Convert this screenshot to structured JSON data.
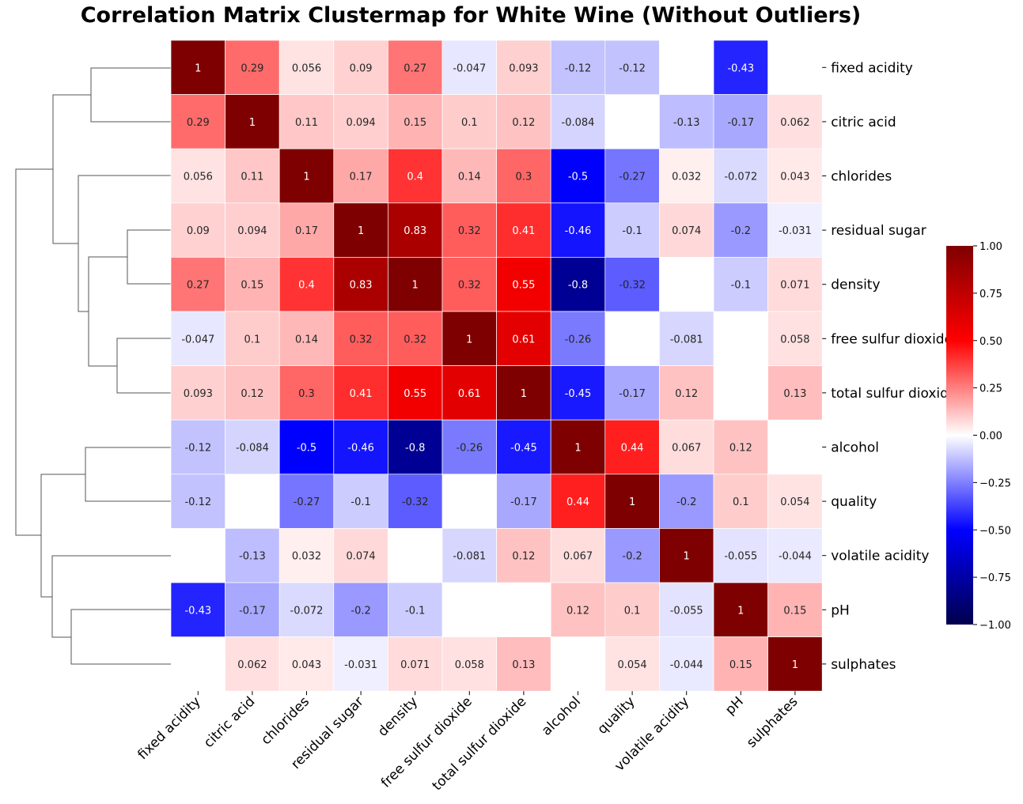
{
  "chart_data": {
    "type": "heatmap",
    "title": "Correlation Matrix Clustermap for White Wine (Without Outliers)",
    "row_labels": [
      "fixed acidity",
      "citric acid",
      "chlorides",
      "residual sugar",
      "density",
      "free sulfur dioxide",
      "total sulfur dioxide",
      "alcohol",
      "quality",
      "volatile acidity",
      "pH",
      "sulphates"
    ],
    "col_labels": [
      "fixed acidity",
      "citric acid",
      "chlorides",
      "residual sugar",
      "density",
      "free sulfur dioxide",
      "total sulfur dioxide",
      "alcohol",
      "quality",
      "volatile acidity",
      "pH",
      "sulphates"
    ],
    "values": [
      [
        1,
        0.29,
        0.056,
        0.09,
        0.27,
        -0.047,
        0.093,
        -0.12,
        -0.12,
        null,
        -0.43,
        null
      ],
      [
        0.29,
        1,
        0.11,
        0.094,
        0.15,
        0.1,
        0.12,
        -0.084,
        null,
        -0.13,
        -0.17,
        0.062
      ],
      [
        0.056,
        0.11,
        1,
        0.17,
        0.4,
        0.14,
        0.3,
        -0.5,
        -0.27,
        0.032,
        -0.072,
        0.043
      ],
      [
        0.09,
        0.094,
        0.17,
        1,
        0.83,
        0.32,
        0.41,
        -0.46,
        -0.1,
        0.074,
        -0.2,
        -0.031
      ],
      [
        0.27,
        0.15,
        0.4,
        0.83,
        1,
        0.32,
        0.55,
        -0.8,
        -0.32,
        null,
        -0.1,
        0.071
      ],
      [
        -0.047,
        0.1,
        0.14,
        0.32,
        0.32,
        1,
        0.61,
        -0.26,
        null,
        -0.081,
        null,
        0.058
      ],
      [
        0.093,
        0.12,
        0.3,
        0.41,
        0.55,
        0.61,
        1,
        -0.45,
        -0.17,
        0.12,
        null,
        0.13
      ],
      [
        -0.12,
        -0.084,
        -0.5,
        -0.46,
        -0.8,
        -0.26,
        -0.45,
        1,
        0.44,
        0.067,
        0.12,
        null
      ],
      [
        -0.12,
        null,
        -0.27,
        -0.1,
        -0.32,
        null,
        -0.17,
        0.44,
        1,
        -0.2,
        0.1,
        0.054
      ],
      [
        null,
        -0.13,
        0.032,
        0.074,
        null,
        -0.081,
        0.12,
        0.067,
        -0.2,
        1,
        -0.055,
        -0.044
      ],
      [
        -0.43,
        -0.17,
        -0.072,
        -0.2,
        -0.1,
        null,
        null,
        0.12,
        0.1,
        -0.055,
        1,
        0.15
      ],
      [
        null,
        0.062,
        0.043,
        -0.031,
        0.071,
        0.058,
        0.13,
        null,
        0.054,
        -0.044,
        0.15,
        1
      ]
    ],
    "value_labels": [
      [
        "1",
        "0.29",
        "0.056",
        "0.09",
        "0.27",
        "-0.047",
        "0.093",
        "-0.12",
        "-0.12",
        "",
        "-0.43",
        ""
      ],
      [
        "0.29",
        "1",
        "0.11",
        "0.094",
        "0.15",
        "0.1",
        "0.12",
        "-0.084",
        "",
        "-0.13",
        "-0.17",
        "0.062"
      ],
      [
        "0.056",
        "0.11",
        "1",
        "0.17",
        "0.4",
        "0.14",
        "0.3",
        "-0.5",
        "-0.27",
        "0.032",
        "-0.072",
        "0.043"
      ],
      [
        "0.09",
        "0.094",
        "0.17",
        "1",
        "0.83",
        "0.32",
        "0.41",
        "-0.46",
        "-0.1",
        "0.074",
        "-0.2",
        "-0.031"
      ],
      [
        "0.27",
        "0.15",
        "0.4",
        "0.83",
        "1",
        "0.32",
        "0.55",
        "-0.8",
        "-0.32",
        "",
        "-0.1",
        "0.071"
      ],
      [
        "-0.047",
        "0.1",
        "0.14",
        "0.32",
        "0.32",
        "1",
        "0.61",
        "-0.26",
        "",
        "-0.081",
        "",
        "0.058"
      ],
      [
        "0.093",
        "0.12",
        "0.3",
        "0.41",
        "0.55",
        "0.61",
        "1",
        "-0.45",
        "-0.17",
        "0.12",
        "",
        "0.13"
      ],
      [
        "-0.12",
        "-0.084",
        "-0.5",
        "-0.46",
        "-0.8",
        "-0.26",
        "-0.45",
        "1",
        "0.44",
        "0.067",
        "0.12",
        ""
      ],
      [
        "-0.12",
        "",
        "-0.27",
        "-0.1",
        "-0.32",
        "",
        "-0.17",
        "0.44",
        "1",
        "-0.2",
        "0.1",
        "0.054"
      ],
      [
        "",
        "-0.13",
        "0.032",
        "0.074",
        "",
        "-0.081",
        "0.12",
        "0.067",
        "-0.2",
        "1",
        "-0.055",
        "-0.044"
      ],
      [
        "-0.43",
        "-0.17",
        "-0.072",
        "-0.2",
        "-0.1",
        "",
        "",
        "0.12",
        "0.1",
        "-0.055",
        "1",
        "0.15"
      ],
      [
        "",
        "0.062",
        "0.043",
        "-0.031",
        "0.071",
        "0.058",
        "0.13",
        "",
        "0.054",
        "-0.044",
        "0.15",
        "1"
      ]
    ],
    "colormap": "seismic",
    "vmin": -1,
    "vmax": 1,
    "colorbar_ticks": [
      "1.00",
      "0.75",
      "0.50",
      "0.25",
      "0.00",
      "−0.25",
      "−0.50",
      "−0.75",
      "−1.00"
    ],
    "row_dendrogram": true,
    "masked_cells_blank": true
  }
}
